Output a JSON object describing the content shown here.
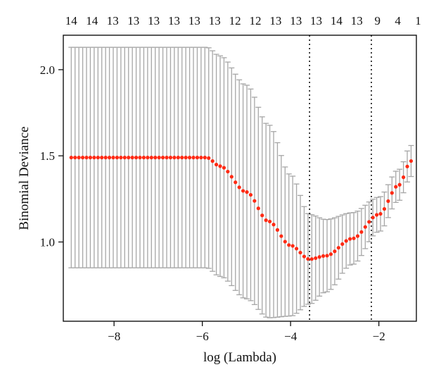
{
  "chart_data": {
    "type": "scatter",
    "xlabel": "log (Lambda)",
    "ylabel": "Binomial Deviance",
    "xlim": [
      -9.15,
      -1.15
    ],
    "ylim": [
      0.54,
      2.2
    ],
    "x_ticks": [
      -8,
      -6,
      -4,
      -2
    ],
    "x_tick_labels": [
      "−8",
      "−6",
      "−4",
      "−2"
    ],
    "y_ticks": [
      1.0,
      1.5,
      2.0
    ],
    "y_tick_labels": [
      "1.0",
      "1.5",
      "2.0"
    ],
    "top_axis_labels": [
      {
        "x": -8.97,
        "label": "14"
      },
      {
        "x": -8.5,
        "label": "14"
      },
      {
        "x": -8.03,
        "label": "13"
      },
      {
        "x": -7.56,
        "label": "13"
      },
      {
        "x": -7.1,
        "label": "13"
      },
      {
        "x": -6.64,
        "label": "13"
      },
      {
        "x": -6.18,
        "label": "13"
      },
      {
        "x": -5.72,
        "label": "13"
      },
      {
        "x": -5.26,
        "label": "12"
      },
      {
        "x": -4.8,
        "label": "12"
      },
      {
        "x": -4.34,
        "label": "13"
      },
      {
        "x": -3.88,
        "label": "13"
      },
      {
        "x": -3.42,
        "label": "13"
      },
      {
        "x": -2.96,
        "label": "14"
      },
      {
        "x": -2.5,
        "label": "13"
      },
      {
        "x": -2.03,
        "label": "9"
      },
      {
        "x": -1.57,
        "label": "4"
      },
      {
        "x": -1.11,
        "label": "1"
      }
    ],
    "reference_lines": [
      {
        "axis": "x",
        "value": -3.57,
        "style": "dotted"
      },
      {
        "axis": "x",
        "value": -2.17,
        "style": "dotted"
      }
    ],
    "series": [
      {
        "mean_color": "#ff2a14",
        "errorbar_color": "#a6a6a6",
        "x_start": -8.97,
        "x_end": -1.27,
        "points": 90,
        "shape_points": [
          {
            "x": -8.97,
            "mean": 1.49,
            "sd": 0.64
          },
          {
            "x": -5.9,
            "mean": 1.49,
            "sd": 0.64
          },
          {
            "x": -5.6,
            "mean": 1.44,
            "sd": 0.64
          },
          {
            "x": -5.0,
            "mean": 1.29,
            "sd": 0.62
          },
          {
            "x": -4.5,
            "mean": 1.12,
            "sd": 0.56
          },
          {
            "x": -4.0,
            "mean": 0.98,
            "sd": 0.41
          },
          {
            "x": -3.57,
            "mean": 0.9,
            "sd": 0.26
          },
          {
            "x": -3.2,
            "mean": 0.92,
            "sd": 0.21
          },
          {
            "x": -2.6,
            "mean": 1.02,
            "sd": 0.15
          },
          {
            "x": -2.0,
            "mean": 1.16,
            "sd": 0.1
          },
          {
            "x": -1.55,
            "mean": 1.33,
            "sd": 0.09
          },
          {
            "x": -1.27,
            "mean": 1.47,
            "sd": 0.09
          }
        ]
      }
    ],
    "grid": false,
    "legend": "none"
  }
}
